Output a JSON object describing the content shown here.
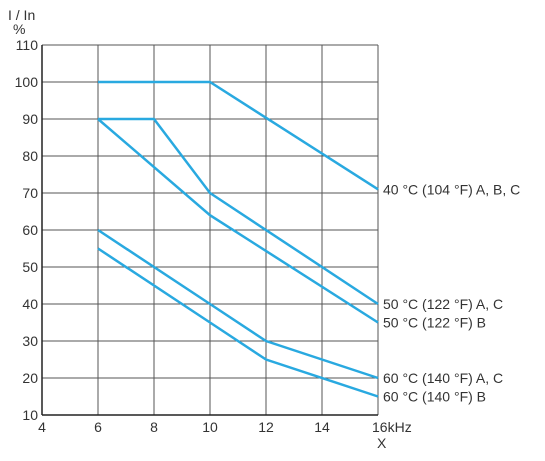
{
  "chart_data": {
    "type": "line",
    "ylabel_line1": "I / In",
    "ylabel_line2": "%",
    "xlabel": "X",
    "x_unit": "kHz",
    "xlim": [
      4,
      16
    ],
    "ylim": [
      10,
      110
    ],
    "x_ticks": [
      4,
      6,
      8,
      10,
      12,
      14,
      16
    ],
    "y_ticks": [
      10,
      20,
      30,
      40,
      50,
      60,
      70,
      80,
      90,
      100,
      110
    ],
    "grid": true,
    "line_color": "#29a9e0",
    "series": [
      {
        "name": "40 °C (104 °F) A, B, C",
        "x": [
          6,
          10,
          16
        ],
        "y": [
          100,
          100,
          71
        ]
      },
      {
        "name": "50 °C (122 °F) A, C",
        "x": [
          6,
          8,
          10,
          16
        ],
        "y": [
          90,
          90,
          70,
          40
        ]
      },
      {
        "name": "50 °C (122 °F) B",
        "x": [
          6,
          10,
          16
        ],
        "y": [
          90,
          64,
          35
        ]
      },
      {
        "name": "60 °C (140 °F) A, C",
        "x": [
          6,
          10,
          12,
          16
        ],
        "y": [
          60,
          40,
          30,
          20
        ]
      },
      {
        "name": "60 °C (140 °F) B",
        "x": [
          6,
          10,
          12,
          16
        ],
        "y": [
          55,
          35,
          25,
          15
        ]
      }
    ]
  }
}
